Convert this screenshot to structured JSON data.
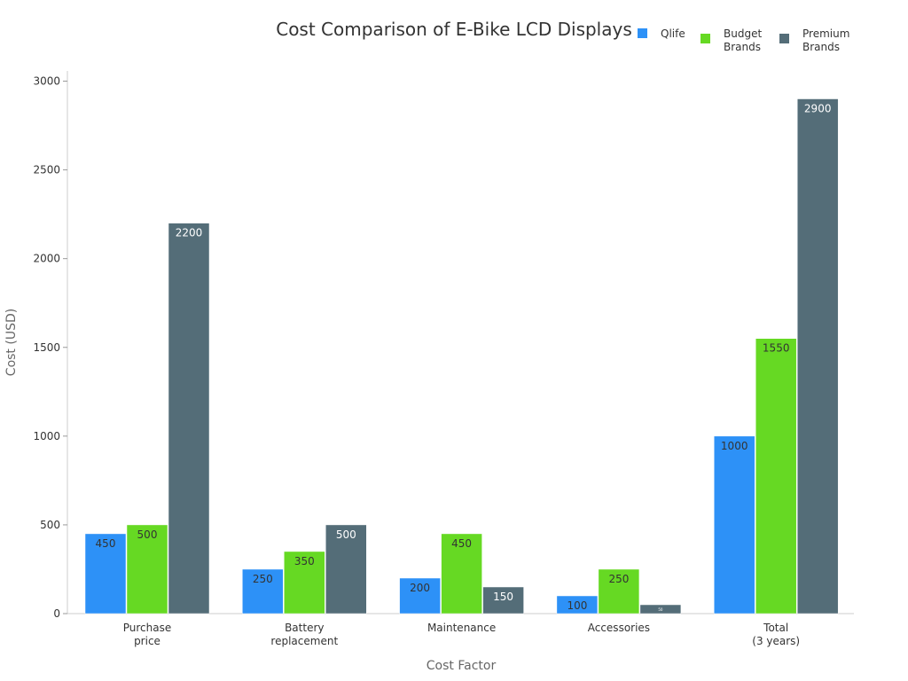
{
  "chart_data": {
    "type": "bar",
    "title": "Cost Comparison of E-Bike LCD Displays",
    "xlabel": "Cost Factor",
    "ylabel": "Cost (USD)",
    "ylim": [
      0,
      3050
    ],
    "yticks": [
      0,
      500,
      1000,
      1500,
      2000,
      2500,
      3000
    ],
    "categories": [
      [
        "Purchase",
        "price"
      ],
      [
        "Battery",
        "replacement"
      ],
      [
        "Maintenance"
      ],
      [
        "Accessories"
      ],
      [
        "Total",
        "(3 years)"
      ]
    ],
    "series": [
      {
        "name": [
          "Qlife"
        ],
        "color": "#2d91f7",
        "label_color": "#333333",
        "values": [
          450,
          250,
          200,
          100,
          1000
        ]
      },
      {
        "name": [
          "Budget",
          "Brands"
        ],
        "color": "#66d923",
        "label_color": "#333333",
        "values": [
          500,
          350,
          450,
          250,
          1550
        ]
      },
      {
        "name": [
          "Premium",
          "Brands"
        ],
        "color": "#546d78",
        "label_color": "#ffffff",
        "values": [
          2200,
          500,
          150,
          50,
          2900
        ]
      }
    ],
    "grid": false,
    "legend_position": "top-right"
  }
}
